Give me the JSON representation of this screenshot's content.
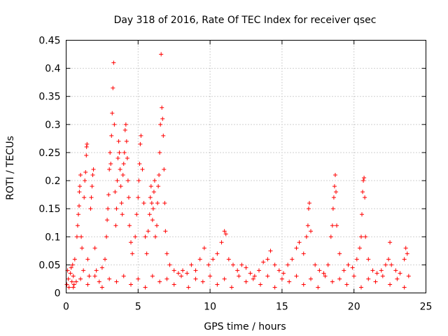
{
  "chart_data": {
    "type": "scatter",
    "title": "Day 318 of 2016, Rate Of TEC Index for receiver qsec",
    "xlabel": "GPS time / hours",
    "ylabel": "ROTI / TECUs",
    "xlim": [
      0,
      25
    ],
    "ylim": [
      0,
      0.45
    ],
    "xticks": [
      "0",
      "5",
      "10",
      "15",
      "20",
      "25"
    ],
    "yticks": [
      "0",
      "0.05",
      "0.1",
      "0.15",
      "0.2",
      "0.25",
      "0.3",
      "0.35",
      "0.4",
      "0.45"
    ],
    "grid": true,
    "marker": "+",
    "color": "#ff0000",
    "series": [
      {
        "points": [
          [
            0.05,
            0.015
          ],
          [
            0.1,
            0.04
          ],
          [
            0.15,
            0.025
          ],
          [
            0.2,
            0.01
          ],
          [
            0.3,
            0.035
          ],
          [
            0.35,
            0.045
          ],
          [
            0.4,
            0.02
          ],
          [
            0.45,
            0.05
          ],
          [
            0.5,
            0.03
          ],
          [
            0.55,
            0.015
          ],
          [
            0.6,
            0.06
          ],
          [
            0.7,
            0.02
          ],
          [
            0.75,
            0.1
          ],
          [
            0.8,
            0.12
          ],
          [
            0.85,
            0.14
          ],
          [
            0.9,
            0.155
          ],
          [
            0.92,
            0.18
          ],
          [
            0.95,
            0.19
          ],
          [
            1.0,
            0.21
          ],
          [
            1.05,
            0.1
          ],
          [
            1.1,
            0.08
          ],
          [
            1.2,
            0.04
          ],
          [
            1.25,
            0.17
          ],
          [
            1.3,
            0.2
          ],
          [
            1.35,
            0.215
          ],
          [
            1.4,
            0.245
          ],
          [
            1.42,
            0.26
          ],
          [
            1.45,
            0.265
          ],
          [
            1.5,
            0.06
          ],
          [
            1.6,
            0.03
          ],
          [
            1.7,
            0.15
          ],
          [
            1.75,
            0.17
          ],
          [
            1.8,
            0.19
          ],
          [
            1.85,
            0.21
          ],
          [
            1.9,
            0.22
          ],
          [
            2.0,
            0.08
          ],
          [
            2.1,
            0.04
          ],
          [
            2.3,
            0.02
          ],
          [
            2.5,
            0.045
          ],
          [
            2.7,
            0.06
          ],
          [
            2.8,
            0.1
          ],
          [
            2.85,
            0.13
          ],
          [
            2.9,
            0.15
          ],
          [
            2.95,
            0.175
          ],
          [
            3.0,
            0.22
          ],
          [
            3.05,
            0.25
          ],
          [
            3.1,
            0.23
          ],
          [
            3.15,
            0.28
          ],
          [
            3.2,
            0.32
          ],
          [
            3.25,
            0.365
          ],
          [
            3.3,
            0.41
          ],
          [
            3.35,
            0.3
          ],
          [
            3.4,
            0.18
          ],
          [
            3.45,
            0.12
          ],
          [
            3.5,
            0.15
          ],
          [
            3.55,
            0.2
          ],
          [
            3.6,
            0.24
          ],
          [
            3.65,
            0.27
          ],
          [
            3.7,
            0.25
          ],
          [
            3.75,
            0.22
          ],
          [
            3.8,
            0.19
          ],
          [
            3.85,
            0.16
          ],
          [
            3.9,
            0.14
          ],
          [
            3.95,
            0.21
          ],
          [
            4.0,
            0.23
          ],
          [
            4.05,
            0.25
          ],
          [
            4.1,
            0.29
          ],
          [
            4.15,
            0.3
          ],
          [
            4.2,
            0.27
          ],
          [
            4.25,
            0.24
          ],
          [
            4.3,
            0.2
          ],
          [
            4.35,
            0.17
          ],
          [
            4.4,
            0.12
          ],
          [
            4.5,
            0.09
          ],
          [
            4.6,
            0.07
          ],
          [
            4.8,
            0.1
          ],
          [
            4.9,
            0.14
          ],
          [
            5.0,
            0.17
          ],
          [
            5.05,
            0.2
          ],
          [
            5.1,
            0.23
          ],
          [
            5.15,
            0.265
          ],
          [
            5.2,
            0.28
          ],
          [
            5.3,
            0.22
          ],
          [
            5.4,
            0.16
          ],
          [
            5.5,
            0.1
          ],
          [
            5.6,
            0.07
          ],
          [
            5.7,
            0.11
          ],
          [
            5.8,
            0.14
          ],
          [
            5.85,
            0.17
          ],
          [
            5.9,
            0.19
          ],
          [
            5.95,
            0.16
          ],
          [
            6.0,
            0.13
          ],
          [
            6.05,
            0.15
          ],
          [
            6.1,
            0.18
          ],
          [
            6.15,
            0.2
          ],
          [
            6.2,
            0.1
          ],
          [
            6.3,
            0.12
          ],
          [
            6.35,
            0.16
          ],
          [
            6.4,
            0.19
          ],
          [
            6.45,
            0.21
          ],
          [
            6.5,
            0.25
          ],
          [
            6.55,
            0.3
          ],
          [
            6.6,
            0.425
          ],
          [
            6.65,
            0.33
          ],
          [
            6.7,
            0.31
          ],
          [
            6.75,
            0.28
          ],
          [
            6.8,
            0.22
          ],
          [
            6.85,
            0.16
          ],
          [
            6.9,
            0.11
          ],
          [
            7.0,
            0.07
          ],
          [
            7.2,
            0.05
          ],
          [
            7.5,
            0.04
          ],
          [
            7.8,
            0.035
          ],
          [
            8.1,
            0.04
          ],
          [
            8.4,
            0.035
          ],
          [
            8.7,
            0.05
          ],
          [
            9.0,
            0.04
          ],
          [
            9.3,
            0.06
          ],
          [
            9.6,
            0.08
          ],
          [
            9.9,
            0.05
          ],
          [
            10.2,
            0.06
          ],
          [
            10.5,
            0.07
          ],
          [
            10.8,
            0.09
          ],
          [
            11.0,
            0.11
          ],
          [
            11.1,
            0.105
          ],
          [
            11.3,
            0.06
          ],
          [
            11.6,
            0.05
          ],
          [
            11.9,
            0.04
          ],
          [
            12.2,
            0.05
          ],
          [
            12.5,
            0.045
          ],
          [
            12.8,
            0.035
          ],
          [
            13.1,
            0.03
          ],
          [
            13.4,
            0.04
          ],
          [
            13.7,
            0.055
          ],
          [
            14.0,
            0.06
          ],
          [
            14.2,
            0.075
          ],
          [
            14.5,
            0.05
          ],
          [
            14.8,
            0.04
          ],
          [
            15.1,
            0.035
          ],
          [
            15.4,
            0.05
          ],
          [
            15.7,
            0.06
          ],
          [
            16.0,
            0.08
          ],
          [
            16.2,
            0.09
          ],
          [
            16.5,
            0.07
          ],
          [
            16.7,
            0.1
          ],
          [
            16.8,
            0.12
          ],
          [
            16.85,
            0.15
          ],
          [
            16.9,
            0.16
          ],
          [
            17.0,
            0.11
          ],
          [
            17.3,
            0.05
          ],
          [
            17.6,
            0.04
          ],
          [
            17.9,
            0.035
          ],
          [
            18.2,
            0.05
          ],
          [
            18.4,
            0.1
          ],
          [
            18.5,
            0.12
          ],
          [
            18.55,
            0.15
          ],
          [
            18.6,
            0.17
          ],
          [
            18.65,
            0.19
          ],
          [
            18.7,
            0.21
          ],
          [
            18.75,
            0.18
          ],
          [
            18.8,
            0.12
          ],
          [
            19.0,
            0.07
          ],
          [
            19.3,
            0.04
          ],
          [
            19.6,
            0.05
          ],
          [
            19.9,
            0.045
          ],
          [
            20.2,
            0.06
          ],
          [
            20.4,
            0.08
          ],
          [
            20.5,
            0.1
          ],
          [
            20.55,
            0.14
          ],
          [
            20.6,
            0.18
          ],
          [
            20.65,
            0.2
          ],
          [
            20.7,
            0.205
          ],
          [
            20.75,
            0.17
          ],
          [
            20.8,
            0.1
          ],
          [
            21.0,
            0.06
          ],
          [
            21.3,
            0.04
          ],
          [
            21.6,
            0.035
          ],
          [
            21.9,
            0.04
          ],
          [
            22.2,
            0.05
          ],
          [
            22.4,
            0.06
          ],
          [
            22.5,
            0.09
          ],
          [
            22.6,
            0.05
          ],
          [
            22.9,
            0.04
          ],
          [
            23.2,
            0.035
          ],
          [
            23.5,
            0.06
          ],
          [
            23.6,
            0.08
          ],
          [
            23.7,
            0.07
          ],
          [
            23.8,
            0.03
          ],
          [
            0.5,
            0.01
          ],
          [
            1.5,
            0.015
          ],
          [
            2.5,
            0.01
          ],
          [
            3.5,
            0.02
          ],
          [
            4.5,
            0.015
          ],
          [
            5.5,
            0.01
          ],
          [
            6.5,
            0.02
          ],
          [
            7.5,
            0.015
          ],
          [
            8.5,
            0.01
          ],
          [
            9.5,
            0.02
          ],
          [
            10.5,
            0.015
          ],
          [
            11.5,
            0.01
          ],
          [
            12.5,
            0.02
          ],
          [
            13.5,
            0.015
          ],
          [
            14.5,
            0.01
          ],
          [
            15.5,
            0.02
          ],
          [
            16.5,
            0.015
          ],
          [
            17.5,
            0.01
          ],
          [
            18.5,
            0.02
          ],
          [
            19.5,
            0.015
          ],
          [
            20.5,
            0.01
          ],
          [
            21.5,
            0.02
          ],
          [
            22.5,
            0.015
          ],
          [
            23.5,
            0.01
          ],
          [
            1.0,
            0.025
          ],
          [
            2.0,
            0.03
          ],
          [
            3.0,
            0.025
          ],
          [
            4.0,
            0.03
          ],
          [
            5.0,
            0.025
          ],
          [
            6.0,
            0.03
          ],
          [
            7.0,
            0.025
          ],
          [
            8.0,
            0.03
          ],
          [
            9.0,
            0.025
          ],
          [
            10.0,
            0.03
          ],
          [
            11.0,
            0.025
          ],
          [
            12.0,
            0.03
          ],
          [
            13.0,
            0.025
          ],
          [
            14.0,
            0.03
          ],
          [
            15.0,
            0.025
          ],
          [
            16.0,
            0.03
          ],
          [
            17.0,
            0.025
          ],
          [
            18.0,
            0.03
          ],
          [
            19.0,
            0.025
          ],
          [
            20.0,
            0.03
          ],
          [
            21.0,
            0.025
          ],
          [
            22.0,
            0.03
          ],
          [
            23.0,
            0.025
          ]
        ]
      }
    ]
  }
}
